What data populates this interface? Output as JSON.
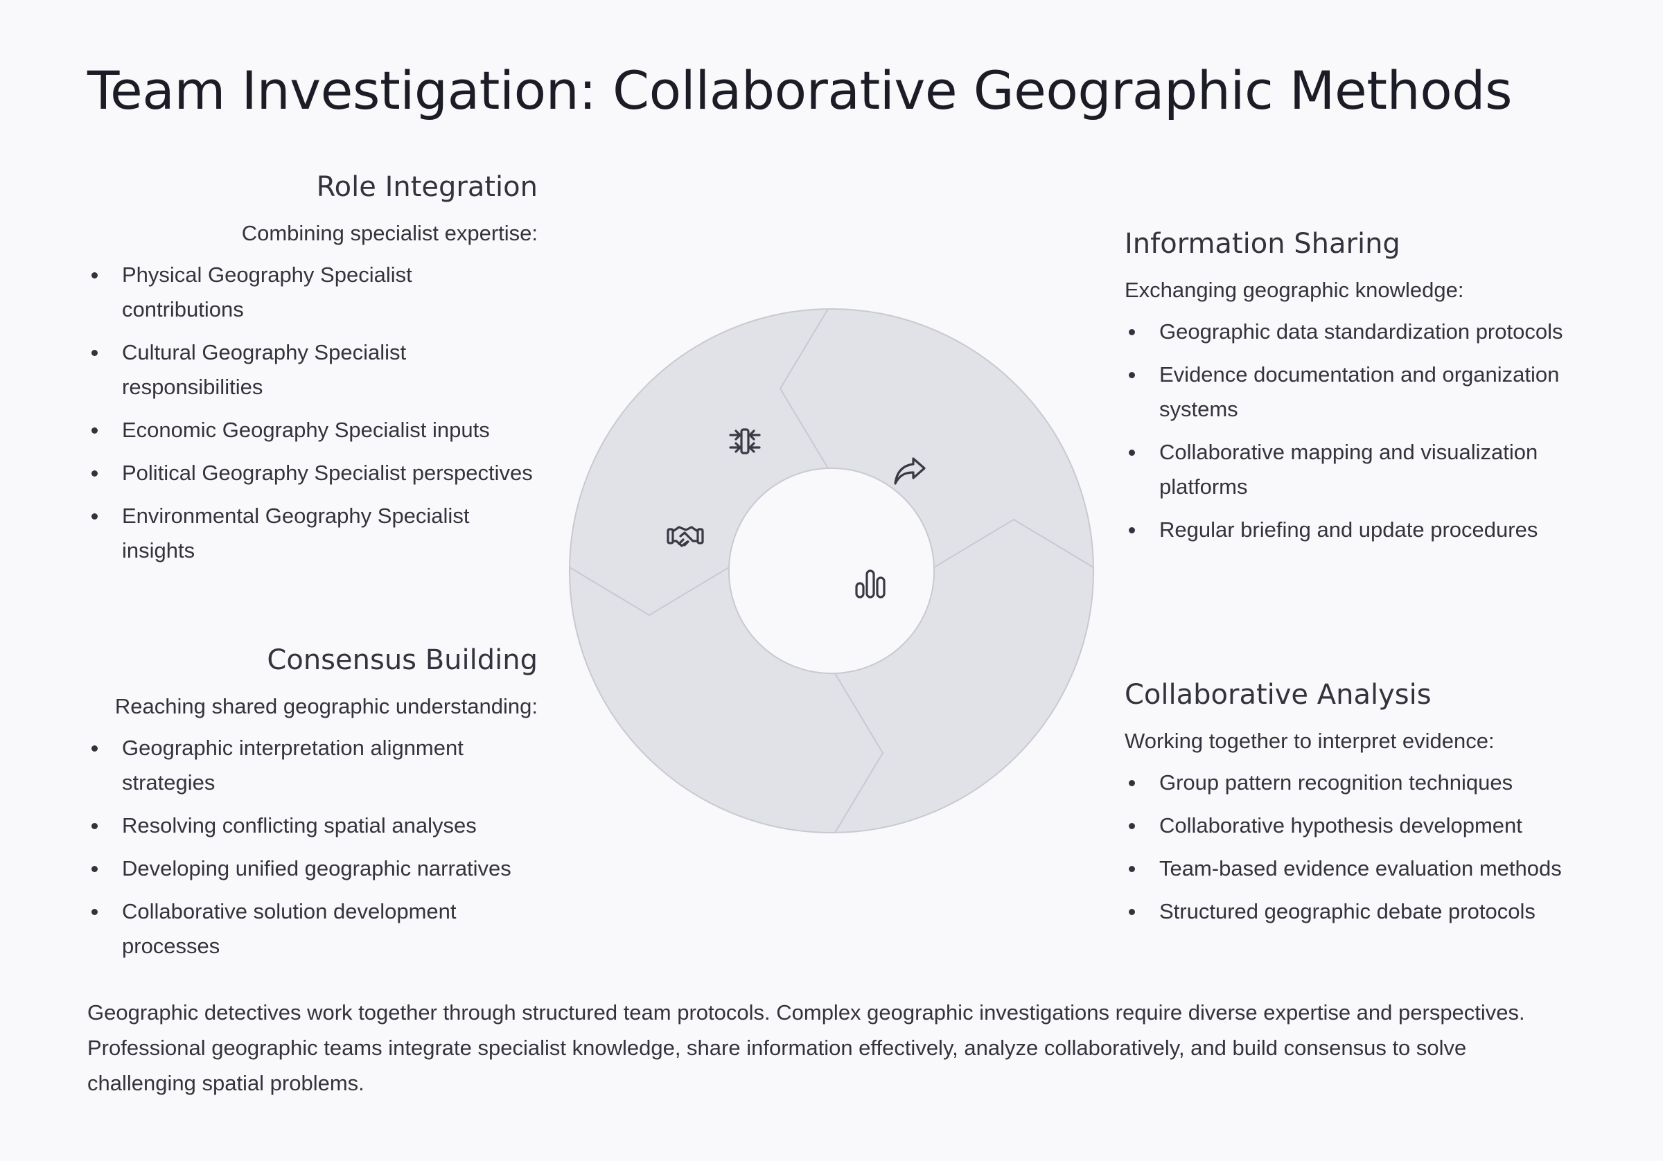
{
  "title": "Team Investigation: Collaborative Geographic Methods",
  "colors": {
    "segment_fill": "#e1e1e8",
    "segment_stroke": "#c9c9d2",
    "icon": "#3a3a44",
    "background": "#f9f9fb"
  },
  "sections": {
    "role_integration": {
      "heading": "Role Integration",
      "intro": "Combining specialist expertise:",
      "icon": "arrows-merge-icon",
      "items": [
        "Physical Geography Specialist contributions",
        "Cultural Geography Specialist responsibilities",
        "Economic Geography Specialist inputs",
        "Political Geography Specialist perspectives",
        "Environmental Geography Specialist insights"
      ]
    },
    "information_sharing": {
      "heading": "Information Sharing",
      "intro": "Exchanging geographic knowledge:",
      "icon": "share-arrow-icon",
      "items": [
        "Geographic data standardization protocols",
        "Evidence documentation and organization systems",
        "Collaborative mapping and visualization platforms",
        "Regular briefing and update procedures"
      ]
    },
    "collaborative_analysis": {
      "heading": "Collaborative Analysis",
      "intro": "Working together to interpret evidence:",
      "icon": "bar-chart-icon",
      "items": [
        "Group pattern recognition techniques",
        "Collaborative hypothesis development",
        "Team-based evidence evaluation methods",
        "Structured geographic debate protocols"
      ]
    },
    "consensus_building": {
      "heading": "Consensus Building",
      "intro": "Reaching shared geographic understanding:",
      "icon": "handshake-icon",
      "items": [
        "Geographic interpretation alignment strategies",
        "Resolving conflicting spatial analyses",
        "Developing unified geographic narratives",
        "Collaborative solution development processes"
      ]
    }
  },
  "footer": "Geographic detectives work together through structured team protocols. Complex geographic investigations require diverse expertise and perspectives. Professional geographic teams integrate specialist knowledge, share information effectively, analyze collaboratively, and build consensus to solve challenging spatial problems."
}
